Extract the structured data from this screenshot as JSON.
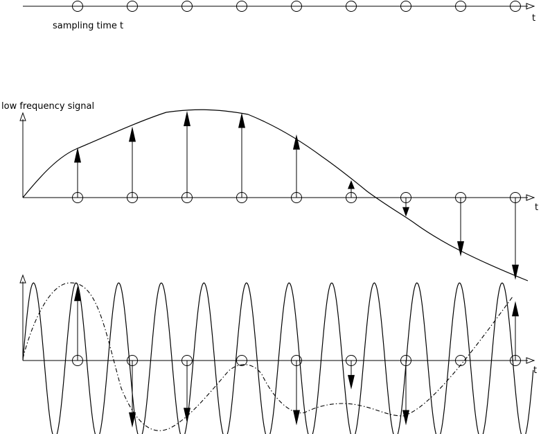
{
  "labels": {
    "axis_t_1": "t",
    "sampling_time": "sampling time t",
    "low_frequency_signal": "low frequency signal",
    "axis_t_2": "t",
    "axis_t_3": "t"
  },
  "sampling": {
    "count": 9,
    "times": [
      1,
      2,
      3,
      4,
      5,
      6,
      7,
      8,
      9
    ]
  },
  "low_frequency_samples": [
    0.58,
    0.82,
    1.0,
    0.98,
    0.73,
    0.2,
    -0.22,
    -0.68,
    -0.95
  ],
  "high_frequency_samples": [
    0.98,
    -0.88,
    -0.82,
    0.02,
    -0.85,
    -0.38,
    -0.85,
    0.01,
    0.78
  ]
}
